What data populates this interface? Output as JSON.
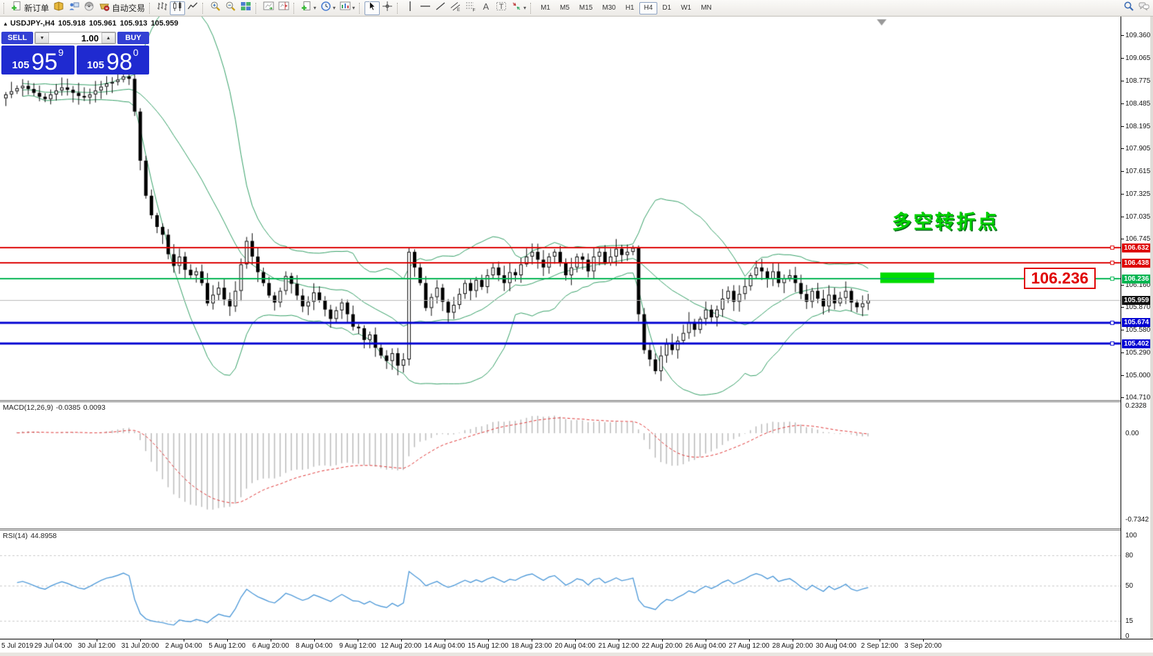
{
  "toolbar": {
    "groups": [
      {
        "items": [
          {
            "icon": "doc-plus",
            "name": "new-order-button",
            "label": "新订单"
          },
          {
            "icon": "book",
            "name": "market-watch-button"
          },
          {
            "icon": "person",
            "name": "data-window-button"
          },
          {
            "icon": "signal",
            "name": "navigator-button"
          },
          {
            "icon": "cart",
            "name": "autotrading-button",
            "label": "自动交易"
          }
        ]
      },
      {
        "items": [
          {
            "icon": "bar-chart",
            "name": "bar-chart-button"
          },
          {
            "icon": "candles",
            "name": "candlestick-chart-button",
            "active": true
          },
          {
            "icon": "line-chart",
            "name": "line-chart-button"
          }
        ]
      },
      {
        "items": [
          {
            "icon": "zoom-in",
            "name": "zoom-in-button"
          },
          {
            "icon": "zoom-out",
            "name": "zoom-out-button"
          },
          {
            "icon": "tiles",
            "name": "tile-windows-button"
          }
        ]
      },
      {
        "items": [
          {
            "icon": "auto-scroll",
            "name": "auto-scroll-button"
          },
          {
            "icon": "chart-shift",
            "name": "chart-shift-button"
          }
        ]
      },
      {
        "items": [
          {
            "icon": "doc-plus",
            "name": "indicators-button",
            "dropdown": true
          },
          {
            "icon": "clock",
            "name": "periods-button",
            "dropdown": true
          },
          {
            "icon": "template",
            "name": "templates-button",
            "dropdown": true
          }
        ]
      },
      {
        "items": [
          {
            "icon": "cursor",
            "name": "cursor-button",
            "active": true
          },
          {
            "icon": "crosshair",
            "name": "crosshair-button"
          }
        ]
      },
      {
        "items": [
          {
            "icon": "vline",
            "name": "vertical-line-button"
          },
          {
            "icon": "hline",
            "name": "horizontal-line-button"
          },
          {
            "icon": "trendline",
            "name": "trendline-button"
          },
          {
            "icon": "channel",
            "name": "equidistant-channel-button"
          },
          {
            "icon": "fibo",
            "name": "fibonacci-button"
          },
          {
            "icon": "text-a",
            "name": "text-button"
          },
          {
            "icon": "text-label",
            "name": "text-label-button"
          },
          {
            "icon": "arrows",
            "name": "arrows-button",
            "dropdown": true
          }
        ]
      }
    ],
    "timeframes": {
      "items": [
        "M1",
        "M5",
        "M15",
        "M30",
        "H1",
        "H4",
        "D1",
        "W1",
        "MN"
      ],
      "active": "H4"
    },
    "right_icons": [
      {
        "icon": "search",
        "name": "search-button"
      },
      {
        "icon": "chat",
        "name": "chat-button"
      }
    ]
  },
  "symbol_bar": {
    "symbol": "USDJPY-,H4",
    "open": "105.918",
    "high": "105.961",
    "low": "105.913",
    "close": "105.959"
  },
  "trade_panel": {
    "sell_label": "SELL",
    "buy_label": "BUY",
    "volume": "1.00",
    "sell_price": {
      "prefix": "105",
      "big": "95",
      "sup": "9"
    },
    "buy_price": {
      "prefix": "105",
      "big": "98",
      "sup": "0"
    }
  },
  "annotation": {
    "text": "多空转折点",
    "color": "#00d200"
  },
  "price_box": {
    "text": "106.236",
    "color": "#e00000"
  },
  "levels": {
    "hlines": [
      {
        "price": "106.632",
        "color": "#dd0000",
        "width": 2
      },
      {
        "price": "106.438",
        "color": "#dd0000",
        "width": 2
      },
      {
        "price": "106.236",
        "color": "#00b450",
        "width": 2
      },
      {
        "price": "105.674",
        "color": "#0000d2",
        "width": 3
      },
      {
        "price": "105.402",
        "color": "#0000d2",
        "width": 3
      }
    ],
    "bid_line": {
      "price": "105.959",
      "color": "#b8b8b8"
    }
  },
  "price_axis": {
    "ticks": [
      "109.360",
      "109.065",
      "108.775",
      "108.485",
      "108.195",
      "107.905",
      "107.615",
      "107.325",
      "107.035",
      "106.745",
      "106.160",
      "105.870",
      "105.580",
      "105.290",
      "105.000",
      "104.710"
    ],
    "badges": [
      {
        "price": "106.632",
        "bg": "#dd0000"
      },
      {
        "price": "106.438",
        "bg": "#dd0000"
      },
      {
        "price": "106.236",
        "bg": "#00b450"
      },
      {
        "price": "105.959",
        "bg": "#111111"
      },
      {
        "price": "105.674",
        "bg": "#0000d2"
      },
      {
        "price": "105.402",
        "bg": "#0000d2"
      }
    ]
  },
  "macd": {
    "label": "MACD(12,26,9)",
    "value": "-0.0385",
    "signal_value": "0.0093",
    "axis": [
      "0.2328",
      "0.00",
      "-0.7342"
    ]
  },
  "rsi": {
    "label": "RSI(14)",
    "value": "44.8958",
    "axis": [
      "100",
      "80",
      "50",
      "15",
      "0"
    ],
    "levels": [
      80,
      50,
      15
    ]
  },
  "time_axis": {
    "labels": [
      "5 Jul 2019",
      "29 Jul 04:00",
      "30 Jul 12:00",
      "31 Jul 20:00",
      "2 Aug 04:00",
      "5 Aug 12:00",
      "6 Aug 20:00",
      "8 Aug 04:00",
      "9 Aug 12:00",
      "12 Aug 20:00",
      "14 Aug 04:00",
      "15 Aug 12:00",
      "18 Aug 23:00",
      "20 Aug 04:00",
      "21 Aug 12:00",
      "22 Aug 20:00",
      "26 Aug 04:00",
      "27 Aug 12:00",
      "28 Aug 20:00",
      "30 Aug 04:00",
      "2 Sep 12:00",
      "3 Sep 20:00"
    ]
  },
  "chart_data": {
    "type": "candlestick",
    "symbol": "USDJPY",
    "timeframe": "H4",
    "x_range": "25 Jul 2019 - 3 Sep 2019",
    "y_range": [
      104.71,
      109.36
    ],
    "closes": [
      108.6,
      108.64,
      108.68,
      108.71,
      108.67,
      108.62,
      108.57,
      108.54,
      108.6,
      108.65,
      108.69,
      108.66,
      108.62,
      108.58,
      108.56,
      108.6,
      108.65,
      108.7,
      108.74,
      108.76,
      108.79,
      108.83,
      108.8,
      108.38,
      107.75,
      107.3,
      107.05,
      106.9,
      106.8,
      106.55,
      106.4,
      106.52,
      106.35,
      106.28,
      106.33,
      106.18,
      105.92,
      106.03,
      106.12,
      105.97,
      105.88,
      106.08,
      106.42,
      106.72,
      106.52,
      106.32,
      106.18,
      106.02,
      105.93,
      106.08,
      106.27,
      106.17,
      106.02,
      105.88,
      105.94,
      106.06,
      105.96,
      105.84,
      105.72,
      105.83,
      105.93,
      105.78,
      105.62,
      105.6,
      105.45,
      105.52,
      105.35,
      105.25,
      105.18,
      105.28,
      105.12,
      105.2,
      106.58,
      106.38,
      106.18,
      105.86,
      106.0,
      106.12,
      105.94,
      105.8,
      105.9,
      106.04,
      106.18,
      106.08,
      106.22,
      106.13,
      106.28,
      106.38,
      106.28,
      106.18,
      106.32,
      106.28,
      106.42,
      106.52,
      106.58,
      106.48,
      106.38,
      106.52,
      106.58,
      106.44,
      106.28,
      106.38,
      106.52,
      106.48,
      106.33,
      106.52,
      106.58,
      106.44,
      106.52,
      106.62,
      106.54,
      106.58,
      106.63,
      105.78,
      105.32,
      105.2,
      105.05,
      105.25,
      105.4,
      105.32,
      105.44,
      105.54,
      105.68,
      105.58,
      105.72,
      105.84,
      105.74,
      105.84,
      105.98,
      106.08,
      105.94,
      106.04,
      106.14,
      106.28,
      106.38,
      106.33,
      106.23,
      106.33,
      106.18,
      106.24,
      106.28,
      106.18,
      106.04,
      105.94,
      106.08,
      105.98,
      105.88,
      106.03,
      105.92,
      105.99,
      106.08,
      105.93,
      105.87,
      105.92,
      105.959
    ],
    "indicators": {
      "bollinger": {
        "period": 20,
        "deviation": 2,
        "color": "#2f9e63"
      },
      "macd": {
        "fast": 12,
        "slow": 26,
        "signal": 9,
        "histogram_color": "#bcbcbc",
        "signal_color": "#e03030"
      },
      "rsi": {
        "period": 14,
        "color": "#4f9ad9"
      }
    },
    "highlight_zone": {
      "price_top": "106.315",
      "price_bottom": "106.180",
      "color": "#00dc00"
    }
  }
}
